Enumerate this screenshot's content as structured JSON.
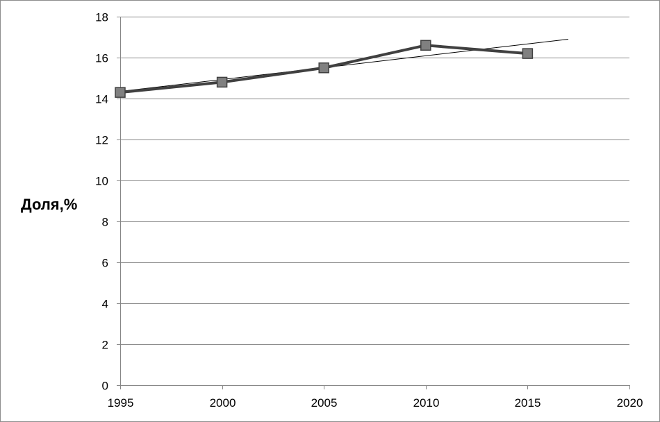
{
  "chart_data": {
    "type": "line",
    "title": "",
    "xlabel": "",
    "ylabel": "Доля,%",
    "xlim": [
      1995,
      2020
    ],
    "ylim": [
      0,
      18
    ],
    "x_ticks": [
      1995,
      2000,
      2005,
      2010,
      2015,
      2020
    ],
    "y_ticks": [
      0,
      2,
      4,
      6,
      8,
      10,
      12,
      14,
      16,
      18
    ],
    "x_tick_labels": [
      "1995",
      "2000",
      "2005",
      "2010",
      "2015",
      "2020"
    ],
    "y_tick_labels": [
      "0",
      "2",
      "4",
      "6",
      "8",
      "10",
      "12",
      "14",
      "16",
      "18"
    ],
    "grid": "horizontal",
    "legend": "none",
    "series": [
      {
        "x": [
          1995,
          2000,
          2005,
          2010,
          2015
        ],
        "y": [
          14.3,
          14.8,
          15.5,
          16.6,
          16.2
        ],
        "marker": "square",
        "color": "#404040",
        "marker_fill": "#808080"
      }
    ],
    "trendline": {
      "type": "linear",
      "color": "#000000",
      "x": [
        1995,
        2017
      ],
      "y": [
        14.35,
        16.9
      ]
    }
  }
}
